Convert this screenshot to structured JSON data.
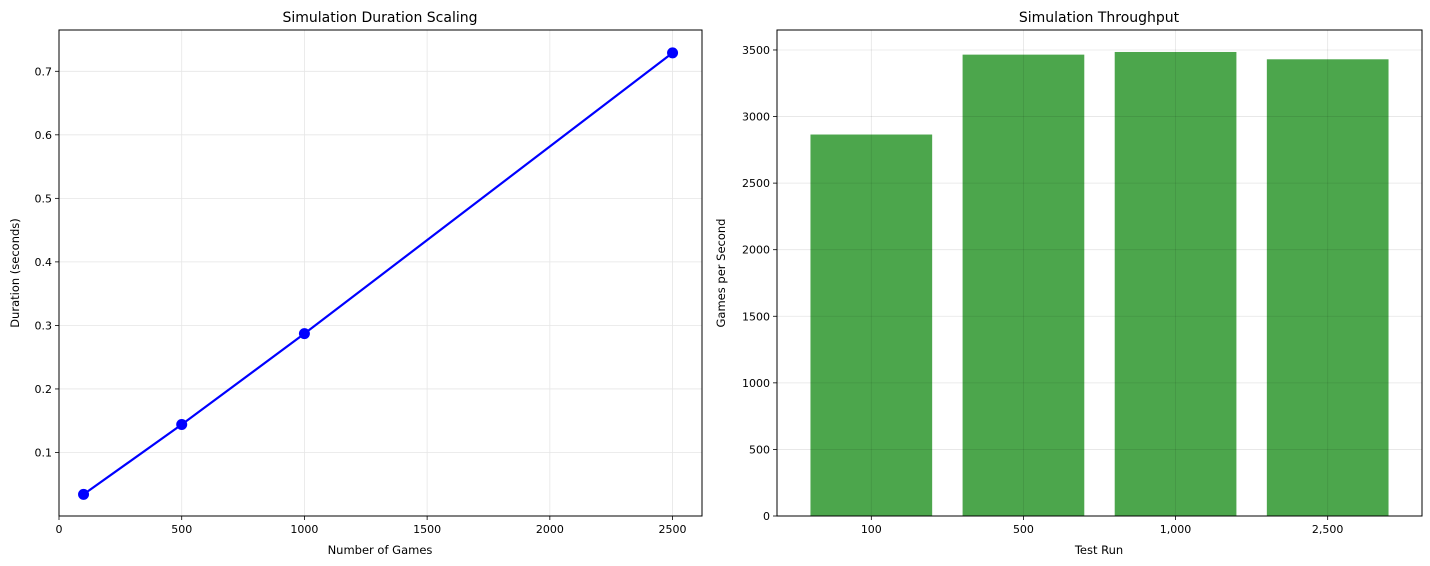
{
  "chart_data": [
    {
      "type": "line",
      "title": "Simulation Duration Scaling",
      "xlabel": "Number of Games",
      "ylabel": "Duration (seconds)",
      "x": [
        100,
        500,
        1000,
        2500
      ],
      "series": [
        {
          "values": [
            0.034,
            0.144,
            0.287,
            0.729
          ],
          "color": "#0000ff"
        }
      ],
      "xlim": [
        0,
        2620
      ],
      "ylim": [
        0.0,
        0.765
      ],
      "xticks": [
        0,
        500,
        1000,
        1500,
        2000,
        2500
      ],
      "yticks": [
        0.1,
        0.2,
        0.3,
        0.4,
        0.5,
        0.6,
        0.7
      ],
      "ytick_labels": [
        "0.1",
        "0.2",
        "0.3",
        "0.4",
        "0.5",
        "0.6",
        "0.7"
      ],
      "grid": true
    },
    {
      "type": "bar",
      "title": "Simulation Throughput",
      "xlabel": "Test Run",
      "ylabel": "Games per Second",
      "categories": [
        "100",
        "500",
        "1,000",
        "2,500"
      ],
      "values": [
        2865,
        3465,
        3485,
        3430
      ],
      "color": "#4ca64c",
      "ylim": [
        0,
        3650
      ],
      "yticks": [
        0,
        500,
        1000,
        1500,
        2000,
        2500,
        3000,
        3500
      ],
      "grid": true
    }
  ]
}
